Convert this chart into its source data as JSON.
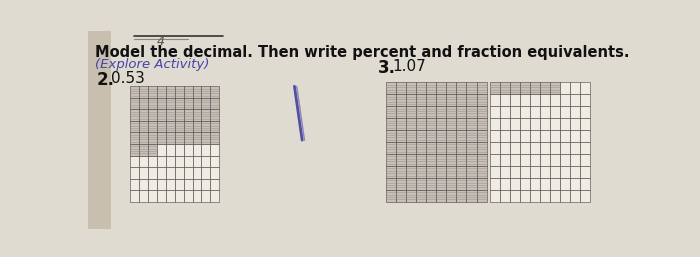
{
  "bg_color_left": "#d8cfc0",
  "bg_color_right": "#e8e4d8",
  "bg_color_main": "#e0dbd0",
  "title_text": "Model the decimal. Then write percent and fraction equivalents.",
  "subtitle_text": "(Explore Activity)",
  "problem2_label": "2.",
  "problem2_value": "0.53",
  "problem3_label": "3.",
  "problem3_value": "1.07",
  "grid_rows": 10,
  "grid_cols": 10,
  "grid_line_color": "#444444",
  "grid_shaded_color": "#c8c0b8",
  "grid_empty_color": "#f0ece4",
  "title_fontsize": 10.5,
  "subtitle_fontsize": 9.5,
  "label_fontsize": 12,
  "value_fontsize": 11,
  "pencil_color1": "#5050a0",
  "pencil_color2": "#7060b0",
  "top_scribble_color": "#333333",
  "num_shaded_2": 53,
  "num_shaded_3b": 7
}
